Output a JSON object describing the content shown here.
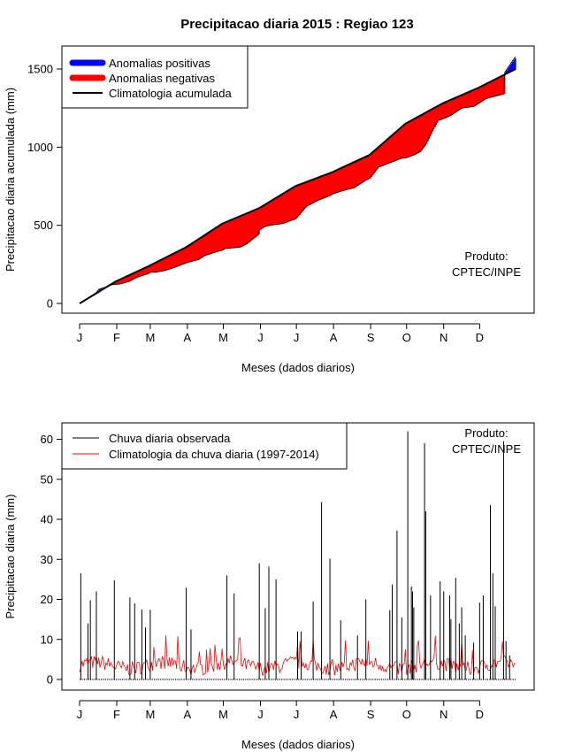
{
  "title": "Precipitacao diaria 2015 : Regiao 123",
  "colors": {
    "positive": "#0000ff",
    "negative": "#ff0000",
    "climatology": "#000000",
    "observed": "#000000",
    "clim_daily": "#ff0000"
  },
  "month_labels": [
    "J",
    "F",
    "M",
    "A",
    "M",
    "J",
    "J",
    "A",
    "S",
    "O",
    "N",
    "D"
  ],
  "chart_data": [
    {
      "type": "area",
      "title": "Precipitacao diaria 2015 : Regiao 123",
      "xlabel": "Meses (dados diarios)",
      "ylabel": "Precipitacao diaria acumulada (mm)",
      "xlim": [
        1,
        365
      ],
      "ylim": [
        0,
        1600
      ],
      "yticks": [
        0,
        500,
        1000,
        1500
      ],
      "month_ticks": [
        "J",
        "F",
        "M",
        "A",
        "M",
        "J",
        "J",
        "A",
        "S",
        "O",
        "N",
        "D"
      ],
      "legend": {
        "position": "top-left",
        "entries": [
          "Anomalias positivas",
          "Anomalias negativas",
          "Climatologia acumulada"
        ]
      },
      "annotation": [
        "Produto:",
        "CPTEC/INPE"
      ],
      "climatology_cumulative": {
        "x": [
          1,
          31,
          59,
          90,
          120,
          151,
          181,
          212,
          243,
          273,
          304,
          334,
          365
        ],
        "y": [
          0,
          140,
          240,
          360,
          510,
          610,
          750,
          840,
          950,
          1150,
          1280,
          1380,
          1500
        ]
      },
      "observed_cumulative": {
        "x": [
          1,
          15,
          17,
          28,
          35,
          42,
          47,
          50,
          58,
          60,
          65,
          72,
          80,
          90,
          100,
          105,
          115,
          120,
          122,
          135,
          140,
          150,
          151,
          155,
          160,
          170,
          181,
          190,
          195,
          200,
          210,
          212,
          220,
          230,
          240,
          243,
          250,
          260,
          270,
          273,
          280,
          285,
          290,
          295,
          300,
          304,
          310,
          320,
          330,
          334,
          340,
          350,
          355,
          356,
          365
        ],
        "y": [
          0,
          70,
          90,
          120,
          125,
          140,
          160,
          170,
          190,
          200,
          200,
          210,
          230,
          260,
          280,
          305,
          330,
          340,
          350,
          360,
          380,
          440,
          470,
          490,
          500,
          510,
          540,
          620,
          640,
          660,
          690,
          700,
          720,
          740,
          790,
          800,
          870,
          900,
          930,
          930,
          950,
          970,
          1020,
          1100,
          1170,
          1180,
          1200,
          1250,
          1260,
          1280,
          1310,
          1330,
          1340,
          1480,
          1580
        ]
      }
    },
    {
      "type": "line",
      "xlabel": "Meses (dados diarios)",
      "ylabel": "Precipitacao diaria (mm)",
      "xlim": [
        1,
        365
      ],
      "ylim": [
        0,
        62
      ],
      "yticks": [
        0,
        10,
        20,
        30,
        40,
        50,
        60
      ],
      "month_ticks": [
        "J",
        "F",
        "M",
        "A",
        "M",
        "J",
        "J",
        "A",
        "S",
        "O",
        "N",
        "D"
      ],
      "legend": {
        "position": "top-left",
        "entries": [
          "Chuva diaria observada",
          "Climatologia da chuva diaria (1997-2014)"
        ]
      },
      "annotation": [
        "Produto:",
        "CPTEC/INPE"
      ],
      "observed_daily": {
        "days": [
          2,
          8,
          10,
          15,
          30,
          43,
          47,
          53,
          56,
          60,
          90,
          94,
          124,
          130,
          151,
          156,
          159,
          165,
          183,
          186,
          196,
          203,
          210,
          219,
          233,
          240,
          260,
          262,
          266,
          270,
          275,
          278,
          279,
          280,
          289,
          290,
          294,
          302,
          305,
          310,
          311,
          315,
          318,
          320,
          323,
          330,
          335,
          338,
          344,
          346,
          348,
          355,
          357,
          360
        ],
        "values": [
          26.5,
          14,
          19.8,
          22,
          24.8,
          20.5,
          19,
          17.5,
          13,
          17.4,
          22.9,
          12.5,
          26,
          21.5,
          29,
          17.8,
          28.2,
          25,
          12,
          12,
          19.5,
          44.3,
          30.2,
          14.8,
          11,
          20,
          17.3,
          23.7,
          37.2,
          15.5,
          62,
          23.2,
          22,
          18,
          59,
          42,
          21,
          24.5,
          22,
          21,
          15,
          25.4,
          14,
          18,
          11,
          9.2,
          19.2,
          21,
          43.5,
          26.5,
          18.3,
          59.5,
          9.6,
          6
        ]
      },
      "climatology_daily_range": [
        0.5,
        11
      ],
      "climatology_daily_typical": 3.5
    }
  ]
}
